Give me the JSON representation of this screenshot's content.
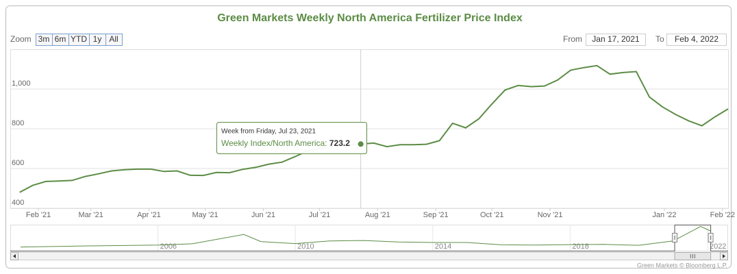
{
  "chart_data": {
    "type": "line",
    "title": "Green Markets Weekly North America Fertilizer Price Index",
    "zoom_label": "Zoom",
    "zoom_buttons": [
      "3m",
      "6m",
      "YTD",
      "1y",
      "All"
    ],
    "from_label": "From",
    "from_value": "Jan 17, 2021",
    "to_label": "To",
    "to_value": "Feb 4, 2022",
    "x": [
      "2021-01-22",
      "2021-01-29",
      "2021-02-05",
      "2021-02-12",
      "2021-02-19",
      "2021-02-26",
      "2021-03-05",
      "2021-03-12",
      "2021-03-19",
      "2021-03-26",
      "2021-04-02",
      "2021-04-09",
      "2021-04-16",
      "2021-04-23",
      "2021-04-30",
      "2021-05-07",
      "2021-05-14",
      "2021-05-21",
      "2021-05-28",
      "2021-06-04",
      "2021-06-11",
      "2021-06-18",
      "2021-06-25",
      "2021-07-02",
      "2021-07-09",
      "2021-07-16",
      "2021-07-23",
      "2021-07-30",
      "2021-08-06",
      "2021-08-13",
      "2021-08-20",
      "2021-08-27",
      "2021-09-03",
      "2021-09-10",
      "2021-09-17",
      "2021-09-24",
      "2021-10-01",
      "2021-10-08",
      "2021-10-15",
      "2021-10-22",
      "2021-10-29",
      "2021-11-05",
      "2021-11-12",
      "2021-11-19",
      "2021-11-26",
      "2021-12-03",
      "2021-12-10",
      "2021-12-17",
      "2021-12-24",
      "2021-12-31",
      "2022-01-07",
      "2022-01-14",
      "2022-01-21",
      "2022-01-28",
      "2022-02-04"
    ],
    "values": [
      480,
      515,
      535,
      537,
      540,
      560,
      573,
      588,
      594,
      597,
      597,
      585,
      588,
      566,
      565,
      580,
      579,
      596,
      606,
      622,
      632,
      660,
      690,
      705,
      712,
      718,
      723.2,
      728,
      710,
      720,
      720,
      722,
      740,
      828,
      805,
      850,
      925,
      995,
      1018,
      1012,
      1015,
      1045,
      1095,
      1108,
      1118,
      1075,
      1083,
      1088,
      960,
      910,
      872,
      840,
      815,
      860,
      900
    ],
    "color": "#5b8c45",
    "xlim": [
      "2021-01-17",
      "2022-02-04"
    ],
    "xticks": [
      {
        "value": "2021-02-01",
        "label": "Feb '21"
      },
      {
        "value": "2021-03-01",
        "label": "Mar '21"
      },
      {
        "value": "2021-04-01",
        "label": "Apr '21"
      },
      {
        "value": "2021-05-01",
        "label": "May '21"
      },
      {
        "value": "2021-06-01",
        "label": "Jun '21"
      },
      {
        "value": "2021-07-01",
        "label": "Jul '21"
      },
      {
        "value": "2021-08-01",
        "label": "Aug '21"
      },
      {
        "value": "2021-09-01",
        "label": "Sep '21"
      },
      {
        "value": "2021-10-01",
        "label": "Oct '21"
      },
      {
        "value": "2021-11-01",
        "label": "Nov '21"
      },
      {
        "value": "2022-01-01",
        "label": "Jan '22"
      },
      {
        "value": "2022-02-01",
        "label": "Feb '22"
      }
    ],
    "ylim": [
      400,
      1200
    ],
    "yticks": [
      400,
      600,
      800,
      {
        "value": 1000,
        "label": "1,000"
      }
    ],
    "grid": true,
    "tooltip": {
      "header": "Week from Friday, Jul 23, 2021",
      "label": "Weekly Index/North America:"
    },
    "navigator": {
      "x": [
        2002,
        2004,
        2006,
        2007,
        2008.5,
        2009,
        2010,
        2011,
        2012,
        2013,
        2014,
        2015,
        2016,
        2017,
        2018,
        2019,
        2020,
        2021,
        2021.8,
        2022.1
      ],
      "values": [
        170,
        220,
        260,
        320,
        750,
        420,
        330,
        450,
        470,
        400,
        380,
        380,
        270,
        260,
        280,
        290,
        250,
        450,
        1118,
        900
      ],
      "xlim": [
        2002,
        2022.3
      ],
      "ylim": [
        0,
        1200
      ],
      "xticks": [
        2006,
        2010,
        2014,
        2018,
        2022
      ]
    },
    "credits": "Green Markets © Bloomberg L.P."
  }
}
